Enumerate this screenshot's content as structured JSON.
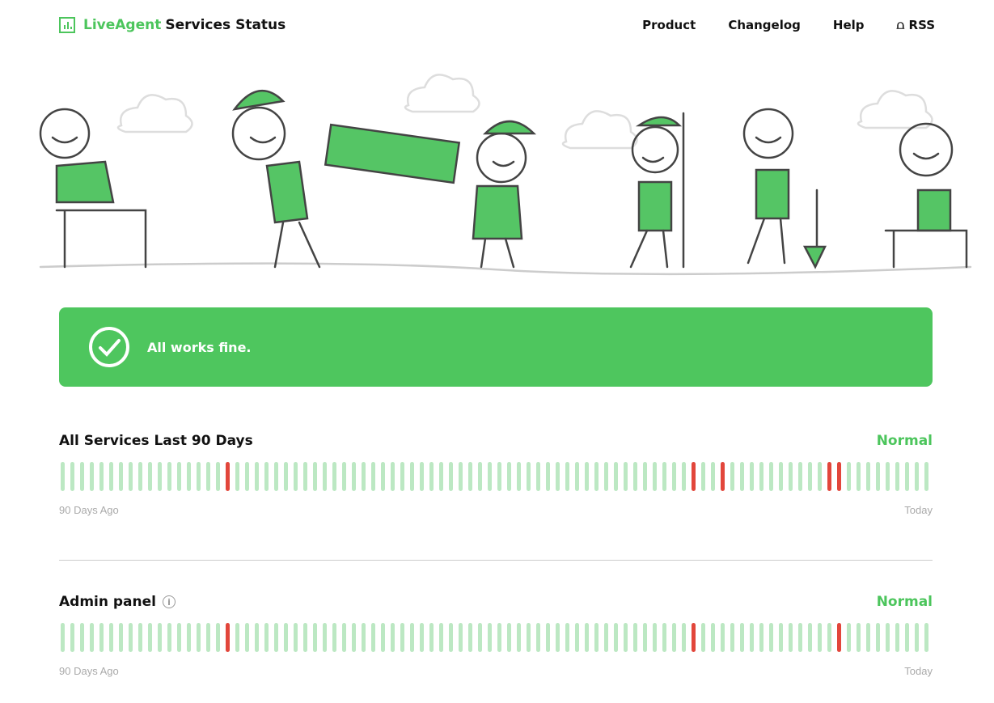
{
  "header": {
    "brand": "LiveAgent",
    "title": "Services Status",
    "nav": [
      "Product",
      "Changelog",
      "Help",
      "RSS"
    ]
  },
  "banner": {
    "text": "All works fine.",
    "icon": "check-circle-icon"
  },
  "colors": {
    "accent": "#4ec65e",
    "ok_bar": "#bce8c3",
    "incident_bar": "#e2463b"
  },
  "sections": [
    {
      "title": "All Services Last 90 Days",
      "status": "Normal",
      "start_label": "90 Days Ago",
      "end_label": "Today",
      "days": 90,
      "incident_days": [
        17,
        65,
        68,
        79,
        80
      ]
    },
    {
      "title": "Admin panel",
      "info": "i",
      "status": "Normal",
      "start_label": "90 Days Ago",
      "end_label": "Today",
      "days": 90,
      "incident_days": [
        17,
        65,
        80
      ]
    }
  ]
}
